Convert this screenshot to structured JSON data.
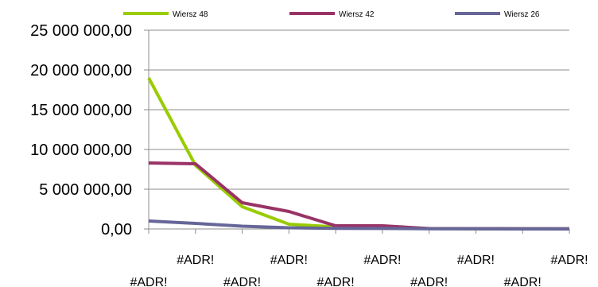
{
  "chart_data": {
    "type": "line",
    "title": "",
    "xlabel": "",
    "ylabel": "",
    "ylim": [
      0,
      25000000
    ],
    "y_ticks": [
      0,
      5000000,
      10000000,
      15000000,
      20000000,
      25000000
    ],
    "y_tick_labels": [
      "0,00",
      "5 000 000,00",
      "10 000 000,00",
      "15 000 000,00",
      "20 000 000,00",
      "25 000 000,00"
    ],
    "categories": [
      "#ADR!",
      "#ADR!",
      "#ADR!",
      "#ADR!",
      "#ADR!",
      "#ADR!",
      "#ADR!",
      "#ADR!",
      "#ADR!",
      "#ADR!"
    ],
    "grid": true,
    "legend_position": "top",
    "series": [
      {
        "name": "Wiersz 48",
        "color": "#99cc00",
        "values": [
          19000000,
          8000000,
          2800000,
          600000,
          250000,
          200000,
          50000,
          30000,
          20000,
          10000
        ]
      },
      {
        "name": "Wiersz 42",
        "color": "#993366",
        "values": [
          8300000,
          8200000,
          3300000,
          2200000,
          400000,
          400000,
          50000,
          40000,
          30000,
          20000
        ]
      },
      {
        "name": "Wiersz 26",
        "color": "#666699",
        "values": [
          1000000,
          700000,
          350000,
          150000,
          80000,
          60000,
          30000,
          20000,
          15000,
          10000
        ]
      }
    ]
  }
}
